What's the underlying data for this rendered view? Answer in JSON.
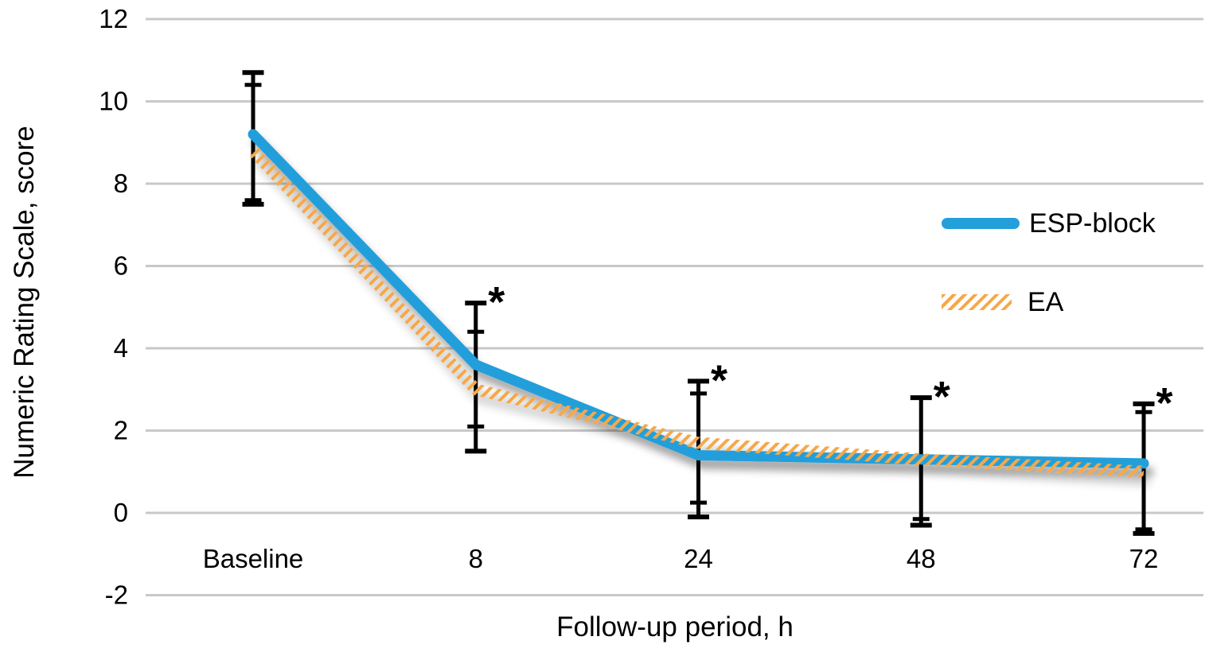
{
  "legend": {
    "items": [
      {
        "label": "ESP-block",
        "swatch": "solid-line",
        "color": "#239fda"
      },
      {
        "label": "EA",
        "swatch": "hatched-line",
        "color": "#f5a84a"
      }
    ]
  },
  "colors": {
    "esp_block_blue": "#239fda",
    "ea_orange": "#f5a84a",
    "grid": "#c8c8c8",
    "error_bar": "#000000",
    "background": "#ffffff"
  },
  "chart_data": {
    "type": "line",
    "title": "",
    "xlabel": "Follow-up period, h",
    "ylabel": "Numeric Rating Scale, score",
    "categories": [
      "Baseline",
      "8",
      "24",
      "48",
      "72"
    ],
    "y_ticks": [
      12,
      10,
      8,
      6,
      4,
      2,
      0,
      -2
    ],
    "ylim": [
      -2,
      12
    ],
    "grid": "horizontal-only",
    "legend_position": "right-center",
    "series": [
      {
        "name": "ESP-block",
        "line_style": "solid-thick",
        "color": "#239fda",
        "values": [
          9.2,
          3.6,
          1.4,
          1.3,
          1.2
        ]
      },
      {
        "name": "EA",
        "line_style": "hatched",
        "color": "#f5a84a",
        "values": [
          8.8,
          3.0,
          1.7,
          1.3,
          1.0
        ]
      }
    ],
    "error_bars": [
      {
        "category": "Baseline",
        "significant": false,
        "marks": [
          {
            "value": 10.7,
            "kind": "cap"
          },
          {
            "value": 10.4,
            "kind": "tick"
          },
          {
            "value": 7.6,
            "kind": "tick"
          },
          {
            "value": 7.5,
            "kind": "cap"
          }
        ]
      },
      {
        "category": "8",
        "significant": true,
        "marks": [
          {
            "value": 5.1,
            "kind": "cap"
          },
          {
            "value": 4.4,
            "kind": "tick"
          },
          {
            "value": 2.1,
            "kind": "tick"
          },
          {
            "value": 1.5,
            "kind": "cap"
          }
        ]
      },
      {
        "category": "24",
        "significant": true,
        "marks": [
          {
            "value": 3.2,
            "kind": "cap"
          },
          {
            "value": 2.9,
            "kind": "tick"
          },
          {
            "value": 0.25,
            "kind": "tick"
          },
          {
            "value": -0.1,
            "kind": "cap"
          }
        ]
      },
      {
        "category": "48",
        "significant": true,
        "marks": [
          {
            "value": 2.8,
            "kind": "cap"
          },
          {
            "value": -0.15,
            "kind": "tick"
          },
          {
            "value": -0.3,
            "kind": "cap"
          }
        ]
      },
      {
        "category": "72",
        "significant": true,
        "marks": [
          {
            "value": 2.65,
            "kind": "cap"
          },
          {
            "value": 2.45,
            "kind": "tick"
          },
          {
            "value": -0.4,
            "kind": "tick"
          },
          {
            "value": -0.5,
            "kind": "cap"
          }
        ]
      }
    ],
    "significance_marker": "*"
  }
}
